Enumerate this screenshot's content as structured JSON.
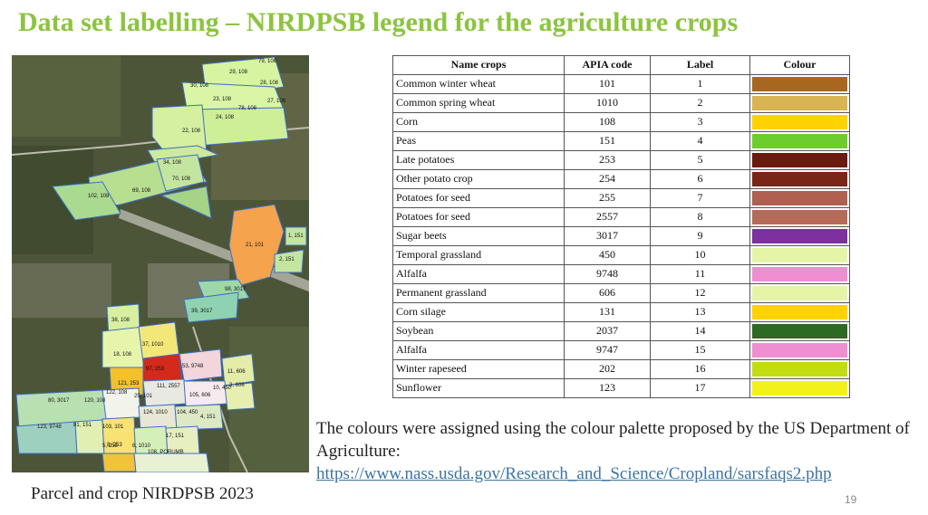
{
  "slide": {
    "title": "Data set labelling – NIRDPSB legend for the agriculture crops",
    "page_number": "19"
  },
  "map": {
    "caption": "Parcel and crop NIRDPSB 2023",
    "parcel_labels": [
      "79, 108",
      "29, 108",
      "28, 108",
      "30, 108",
      "23, 108",
      "27, 108",
      "78, 108",
      "24, 108",
      "22, 108",
      "34, 108",
      "70, 108",
      "69, 108",
      "102, 108",
      "21, 101",
      "1, 151",
      "2, 151",
      "98, 3017",
      "39, 3017",
      "38, 108",
      "37, 1010",
      "18, 108",
      "97, 253",
      "53, 9748",
      "11, 606",
      "121, 253",
      "111, 2557",
      "105, 606",
      "10, 450",
      "3, 606",
      "122, 108",
      "25, 101",
      "80, 3017",
      "120, 108",
      "124, 1010",
      "104, 450",
      "4, 151",
      "123, 9748",
      "81, 151",
      "103, 101",
      "17, 151",
      "5, 258",
      "6, 1010",
      "108, PORUMB",
      "8, 253"
    ]
  },
  "table": {
    "headers": [
      "Name crops",
      "APIA code",
      "Label",
      "Colour"
    ],
    "rows": [
      {
        "name": "Common winter wheat",
        "code": "101",
        "label": "1",
        "color": "#a8671f"
      },
      {
        "name": "Common spring wheat",
        "code": "1010",
        "label": "2",
        "color": "#d8b452"
      },
      {
        "name": "Corn",
        "code": "108",
        "label": "3",
        "color": "#ffd200"
      },
      {
        "name": "Peas",
        "code": "151",
        "label": "4",
        "color": "#6dcc2e"
      },
      {
        "name": "Late potatoes",
        "code": "253",
        "label": "5",
        "color": "#6b1a0f"
      },
      {
        "name": "Other potato crop",
        "code": "254",
        "label": "6",
        "color": "#7a2616"
      },
      {
        "name": "Potatoes for seed",
        "code": "255",
        "label": "7",
        "color": "#b06050"
      },
      {
        "name": "Potatoes for seed",
        "code": "2557",
        "label": "8",
        "color": "#b76a5a"
      },
      {
        "name": "Sugar beets",
        "code": "3017",
        "label": "9",
        "color": "#7e2fa0"
      },
      {
        "name": "Temporal grassland",
        "code": "450",
        "label": "10",
        "color": "#e5f4a6"
      },
      {
        "name": "Alfalfa",
        "code": "9748",
        "label": "11",
        "color": "#f08ed2"
      },
      {
        "name": "Permanent grassland",
        "code": "606",
        "label": "12",
        "color": "#e5f4a6"
      },
      {
        "name": "Corn silage",
        "code": "131",
        "label": "13",
        "color": "#ffd200"
      },
      {
        "name": "Soybean",
        "code": "2037",
        "label": "14",
        "color": "#2d6a24"
      },
      {
        "name": "Alfalfa",
        "code": "9747",
        "label": "15",
        "color": "#f08ed2"
      },
      {
        "name": "Winter rapeseed",
        "code": "202",
        "label": "16",
        "color": "#c2dc11"
      },
      {
        "name": "Sunflower",
        "code": "123",
        "label": "17",
        "color": "#f2f21a"
      }
    ]
  },
  "note": {
    "text": "The colours were assigned using the colour palette proposed by the US Department of Agriculture:",
    "link": "https://www.nass.usda.gov/Research_and_Science/Cropland/sarsfaqs2.php"
  }
}
